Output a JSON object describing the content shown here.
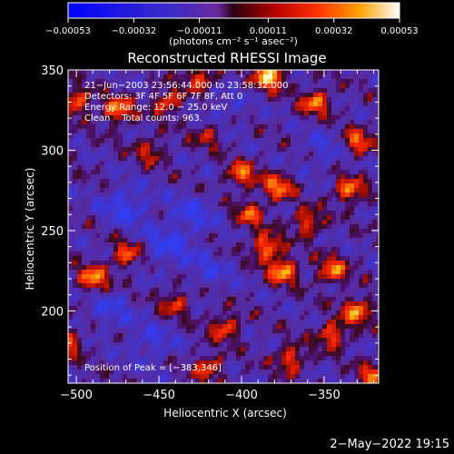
{
  "chart_data": {
    "type": "heatmap",
    "title": "Reconstructed RHESSI Image",
    "xlabel": "Heliocentric X (arcsec)",
    "ylabel": "Heliocentric Y (arcsec)",
    "xlim": [
      -505,
      -317
    ],
    "ylim": [
      155,
      350
    ],
    "x_ticks": [
      -500,
      -450,
      -400,
      -350
    ],
    "y_ticks": [
      200,
      250,
      300,
      350
    ],
    "x_tick_labels": [
      "−500",
      "−450",
      "−400",
      "−350"
    ],
    "y_tick_labels": [
      "200",
      "250",
      "300",
      "350"
    ],
    "colorbar": {
      "range": [
        -0.00053,
        0.00053
      ],
      "tick_values": [
        -0.00053,
        -0.00032,
        -0.00011,
        0.00011,
        0.00032,
        0.00053
      ],
      "tick_labels": [
        "−0.00053",
        "−0.00032",
        "−0.00011",
        "0.00011",
        "0.00032",
        "0.00053"
      ],
      "units_label": "(photons cm⁻² s⁻¹ asec⁻²)"
    },
    "annotations": [
      "21−Jun−2003 23:56:44.000 to 23:58:32.000",
      "Detectors: 3F 4F 5F 6F 7F 8F, Att 0",
      "Energy Range: 12.0 − 25.0 keV",
      "Clean    Total counts: 963."
    ],
    "peak_label": "Position of Peak = [−383,346]",
    "hot_spots": [
      {
        "x": -383,
        "y": 346,
        "v": 1.0
      },
      {
        "x": -475,
        "y": 325,
        "v": 0.75
      },
      {
        "x": -500,
        "y": 330,
        "v": 0.65
      },
      {
        "x": -445,
        "y": 330,
        "v": 0.6
      },
      {
        "x": -425,
        "y": 345,
        "v": 0.6
      },
      {
        "x": -355,
        "y": 330,
        "v": 0.7
      },
      {
        "x": -330,
        "y": 305,
        "v": 0.65
      },
      {
        "x": -335,
        "y": 275,
        "v": 0.7
      },
      {
        "x": -400,
        "y": 285,
        "v": 0.65
      },
      {
        "x": -378,
        "y": 277,
        "v": 0.7
      },
      {
        "x": -360,
        "y": 255,
        "v": 0.6
      },
      {
        "x": -385,
        "y": 240,
        "v": 0.75
      },
      {
        "x": -375,
        "y": 225,
        "v": 0.8
      },
      {
        "x": -395,
        "y": 260,
        "v": 0.55
      },
      {
        "x": -490,
        "y": 220,
        "v": 0.75
      },
      {
        "x": -470,
        "y": 235,
        "v": 0.6
      },
      {
        "x": -345,
        "y": 225,
        "v": 0.7
      },
      {
        "x": -330,
        "y": 200,
        "v": 0.75
      },
      {
        "x": -345,
        "y": 185,
        "v": 0.65
      },
      {
        "x": -410,
        "y": 190,
        "v": 0.6
      },
      {
        "x": -420,
        "y": 165,
        "v": 0.55
      },
      {
        "x": -370,
        "y": 170,
        "v": 0.6
      },
      {
        "x": -440,
        "y": 205,
        "v": 0.5
      },
      {
        "x": -320,
        "y": 160,
        "v": 0.6
      },
      {
        "x": -505,
        "y": 180,
        "v": 0.55
      },
      {
        "x": -455,
        "y": 300,
        "v": 0.45
      },
      {
        "x": -420,
        "y": 310,
        "v": 0.4
      }
    ],
    "cold_spots": [
      {
        "x": -470,
        "y": 265,
        "v": 1.0
      },
      {
        "x": -445,
        "y": 240,
        "v": 0.9
      },
      {
        "x": -430,
        "y": 260,
        "v": 0.8
      },
      {
        "x": -480,
        "y": 200,
        "v": 0.7
      },
      {
        "x": -455,
        "y": 180,
        "v": 0.7
      },
      {
        "x": -420,
        "y": 225,
        "v": 0.6
      },
      {
        "x": -350,
        "y": 300,
        "v": 0.6
      },
      {
        "x": -410,
        "y": 325,
        "v": 0.5
      }
    ]
  },
  "footer": {
    "timestamp": "2−May−2022 19:15"
  }
}
